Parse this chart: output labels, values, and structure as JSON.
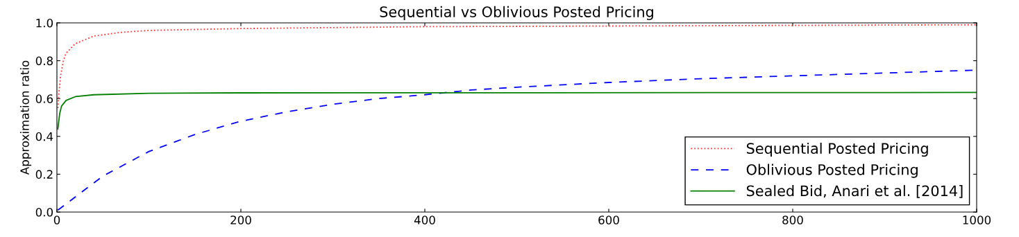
{
  "chart_data": {
    "type": "line",
    "title": "Sequential vs Oblivious Posted Pricing",
    "ylabel": "Approximation ratio",
    "series": [
      {
        "name": "Sequential Posted Pricing",
        "color": "#ff3333",
        "line_style": "dotted",
        "x": [
          1,
          2,
          4,
          7,
          10,
          20,
          40,
          70,
          100,
          200,
          400,
          700,
          1000
        ],
        "values": [
          0.55,
          0.62,
          0.72,
          0.8,
          0.84,
          0.89,
          0.93,
          0.95,
          0.96,
          0.97,
          0.98,
          0.985,
          0.99
        ]
      },
      {
        "name": "Oblivious Posted Pricing",
        "color": "#0000ff",
        "line_style": "dashed",
        "x": [
          1,
          20,
          50,
          100,
          150,
          200,
          250,
          300,
          350,
          400,
          450,
          500,
          600,
          700,
          800,
          900,
          1000
        ],
        "values": [
          0.01,
          0.08,
          0.19,
          0.32,
          0.41,
          0.48,
          0.53,
          0.57,
          0.6,
          0.62,
          0.645,
          0.66,
          0.685,
          0.705,
          0.72,
          0.735,
          0.75
        ]
      },
      {
        "name": "Sealed Bid, Anari et al. [2014]",
        "color": "#008000",
        "line_style": "solid",
        "x": [
          1,
          3,
          5,
          10,
          20,
          40,
          100,
          200,
          1000
        ],
        "values": [
          0.44,
          0.52,
          0.56,
          0.59,
          0.61,
          0.62,
          0.628,
          0.63,
          0.632
        ]
      }
    ],
    "xlim": [
      0,
      1000
    ],
    "xticks": [
      0,
      200,
      400,
      600,
      800,
      1000
    ],
    "ylim": [
      0,
      1
    ],
    "yticks": [
      {
        "value": 0,
        "label": "0.0"
      },
      {
        "value": 0.2,
        "label": "0.2"
      },
      {
        "value": 0.4,
        "label": "0.4"
      },
      {
        "value": 0.6,
        "label": "0.6"
      },
      {
        "value": 0.8,
        "label": "0.8"
      },
      {
        "value": 1,
        "label": "1.0"
      }
    ],
    "legend": "lower right",
    "grid": false
  }
}
